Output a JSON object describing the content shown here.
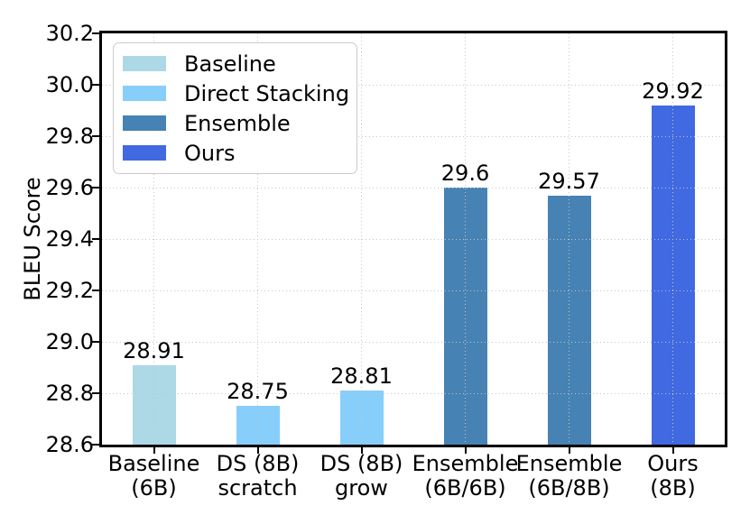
{
  "chart_data": {
    "type": "bar",
    "title": "",
    "xlabel": "",
    "ylabel": "BLEU Score",
    "ylim": [
      28.6,
      30.2
    ],
    "yticks": [
      28.6,
      28.8,
      29.0,
      29.2,
      29.4,
      29.6,
      29.8,
      30.0,
      30.2
    ],
    "ytick_labels": [
      "28.6",
      "28.8",
      "29.0",
      "29.2",
      "29.4",
      "29.6",
      "29.8",
      "30.0",
      "30.2"
    ],
    "grid": true,
    "grid_style": "dotted",
    "categories": [
      "Baseline\n(6B)",
      "DS (8B)\nscratch",
      "DS (8B)\ngrow",
      "Ensemble\n(6B/6B)",
      "Ensemble\n(6B/8B)",
      "Ours\n(8B)"
    ],
    "values": [
      28.91,
      28.75,
      28.81,
      29.6,
      29.57,
      29.92
    ],
    "value_labels": [
      "28.91",
      "28.75",
      "28.81",
      "29.6",
      "29.57",
      "29.92"
    ],
    "bar_colors": [
      "#ADD8E6",
      "#87CEFA",
      "#87CEFA",
      "#4682B4",
      "#4682B4",
      "#4169E1"
    ],
    "series_of_bars": [
      "Baseline",
      "Direct Stacking",
      "Direct Stacking",
      "Ensemble",
      "Ensemble",
      "Ours"
    ],
    "legend": {
      "position": "upper left",
      "entries": [
        {
          "label": "Baseline",
          "color": "#ADD8E6"
        },
        {
          "label": "Direct Stacking",
          "color": "#87CEFA"
        },
        {
          "label": "Ensemble",
          "color": "#4682B4"
        },
        {
          "label": "Ours",
          "color": "#4169E1"
        }
      ]
    },
    "colors": {
      "spine": "#000000",
      "gridline": "#c6c6c6",
      "legend_border": "#cccccc",
      "text": "#000000",
      "background": "#ffffff"
    }
  }
}
